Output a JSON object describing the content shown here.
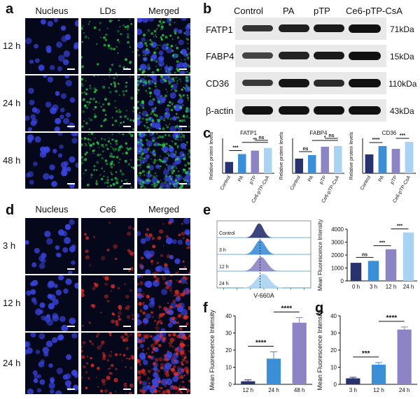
{
  "panel_labels": {
    "a": "a",
    "b": "b",
    "c": "c",
    "d": "d",
    "e": "e",
    "f": "f",
    "g": "g"
  },
  "panel_a": {
    "columns": [
      "Nucleus",
      "LDs",
      "Merged"
    ],
    "rows": [
      "12 h",
      "24 h",
      "48 h"
    ]
  },
  "panel_d": {
    "columns": [
      "Nucleus",
      "Ce6",
      "Merged"
    ],
    "rows": [
      "3 h",
      "12 h",
      "24 h"
    ]
  },
  "panel_b": {
    "lanes": [
      "Control",
      "PA",
      "pTP",
      "Ce6-pTP-CsA"
    ],
    "proteins": [
      "FATP1",
      "FABP4",
      "CD36",
      "β-actin"
    ],
    "sizes": [
      "71kDa",
      "15kDa",
      "110kDa",
      "43kDa"
    ]
  },
  "chart_data": [
    {
      "panel": "c",
      "type": "bar",
      "title": "FATP1",
      "ylabel": "Relative protein levels",
      "categories": [
        "Control",
        "PA",
        "pTP",
        "Ce6-pTP-CsA"
      ],
      "values": [
        0.13,
        0.22,
        0.26,
        0.29
      ],
      "ylim": [
        0,
        0.4
      ],
      "significance": [
        "***",
        "**",
        "ns"
      ],
      "colors": [
        "#27326e",
        "#3a8fd6",
        "#8c84c4",
        "#a9d3f2"
      ]
    },
    {
      "panel": "c",
      "type": "bar",
      "title": "FABP4",
      "ylabel": "Relative protein levels",
      "categories": [
        "Control",
        "PA",
        "pTP",
        "Ce6-pTP-CsA"
      ],
      "values": [
        0.21,
        0.26,
        0.38,
        0.39
      ],
      "ylim": [
        0,
        0.5
      ],
      "significance": [
        "ns",
        "*",
        "ns"
      ],
      "colors": [
        "#27326e",
        "#3a8fd6",
        "#8c84c4",
        "#a9d3f2"
      ]
    },
    {
      "panel": "c",
      "type": "bar",
      "title": "CD36",
      "ylabel": "Relative protein levels",
      "categories": [
        "Control",
        "PA",
        "pTP",
        "Ce6-pTP-CsA"
      ],
      "values": [
        0.27,
        0.39,
        0.35,
        0.45
      ],
      "ylim": [
        0,
        0.5
      ],
      "significance": [
        "****",
        "***"
      ],
      "colors": [
        "#27326e",
        "#3a8fd6",
        "#8c84c4",
        "#a9d3f2"
      ]
    },
    {
      "panel": "e",
      "type": "area",
      "xlabel": "V-660A",
      "series": [
        {
          "name": "Control"
        },
        {
          "name": "3 h"
        },
        {
          "name": "12 h"
        },
        {
          "name": "24 h"
        }
      ],
      "colors": [
        "#27326e",
        "#3a8fd6",
        "#8c84c4",
        "#a9d3f2"
      ]
    },
    {
      "panel": "e",
      "type": "bar",
      "ylabel": "Mean Fluorescence Intensity",
      "categories": [
        "0 h",
        "3 h",
        "12 h",
        "24 h"
      ],
      "values": [
        1400,
        1550,
        2450,
        3750
      ],
      "ylim": [
        0,
        4000
      ],
      "yticks": [
        0,
        1000,
        2000,
        3000,
        4000
      ],
      "significance": [
        "ns",
        "***",
        "***"
      ],
      "colors": [
        "#27326e",
        "#3a8fd6",
        "#8c84c4",
        "#a9d3f2"
      ]
    },
    {
      "panel": "f",
      "type": "bar",
      "ylabel": "Mean Fluorescence Intensity",
      "categories": [
        "12 h",
        "24 h",
        "48 h"
      ],
      "values": [
        1.8,
        15,
        36
      ],
      "errors": [
        0.8,
        4,
        3
      ],
      "ylim": [
        0,
        40
      ],
      "yticks": [
        0,
        10,
        20,
        30,
        40
      ],
      "significance": [
        "****",
        "****"
      ],
      "colors": [
        "#27326e",
        "#3a8fd6",
        "#8c84c4"
      ]
    },
    {
      "panel": "g",
      "type": "bar",
      "ylabel": "Mean Fluorescence Intensity",
      "categories": [
        "3 h",
        "12 h",
        "24 h"
      ],
      "values": [
        3.5,
        11.5,
        32
      ],
      "errors": [
        0.6,
        1.2,
        1.5
      ],
      "ylim": [
        0,
        40
      ],
      "yticks": [
        0,
        10,
        20,
        30,
        40
      ],
      "significance": [
        "***",
        "****"
      ],
      "colors": [
        "#27326e",
        "#3a8fd6",
        "#8c84c4"
      ]
    }
  ]
}
